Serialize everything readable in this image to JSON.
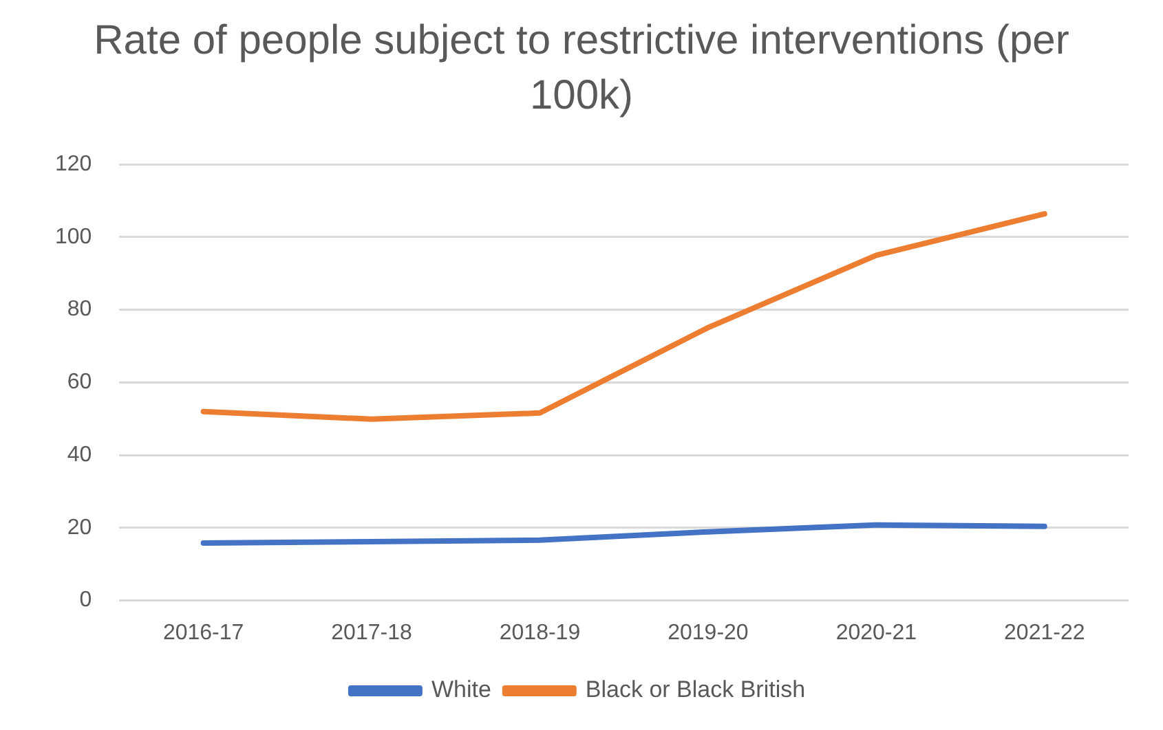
{
  "chart_data": {
    "type": "line",
    "title": "Rate of people subject to restrictive interventions (per 100k)",
    "categories": [
      "2016-17",
      "2017-18",
      "2018-19",
      "2019-20",
      "2020-21",
      "2021-22"
    ],
    "series": [
      {
        "name": "White",
        "color": "#4472c4",
        "values": [
          15.8,
          16.2,
          16.6,
          18.9,
          20.8,
          20.4
        ]
      },
      {
        "name": "Black or Black British",
        "color": "#ed7d31",
        "values": [
          52,
          49.9,
          51.6,
          75.1,
          95,
          106.4
        ]
      }
    ],
    "ylim": [
      0,
      120
    ],
    "yticks": [
      0,
      20,
      40,
      60,
      80,
      100,
      120
    ],
    "grid": "y",
    "legend": "bottom",
    "marker": "none",
    "line_style": "solid"
  }
}
